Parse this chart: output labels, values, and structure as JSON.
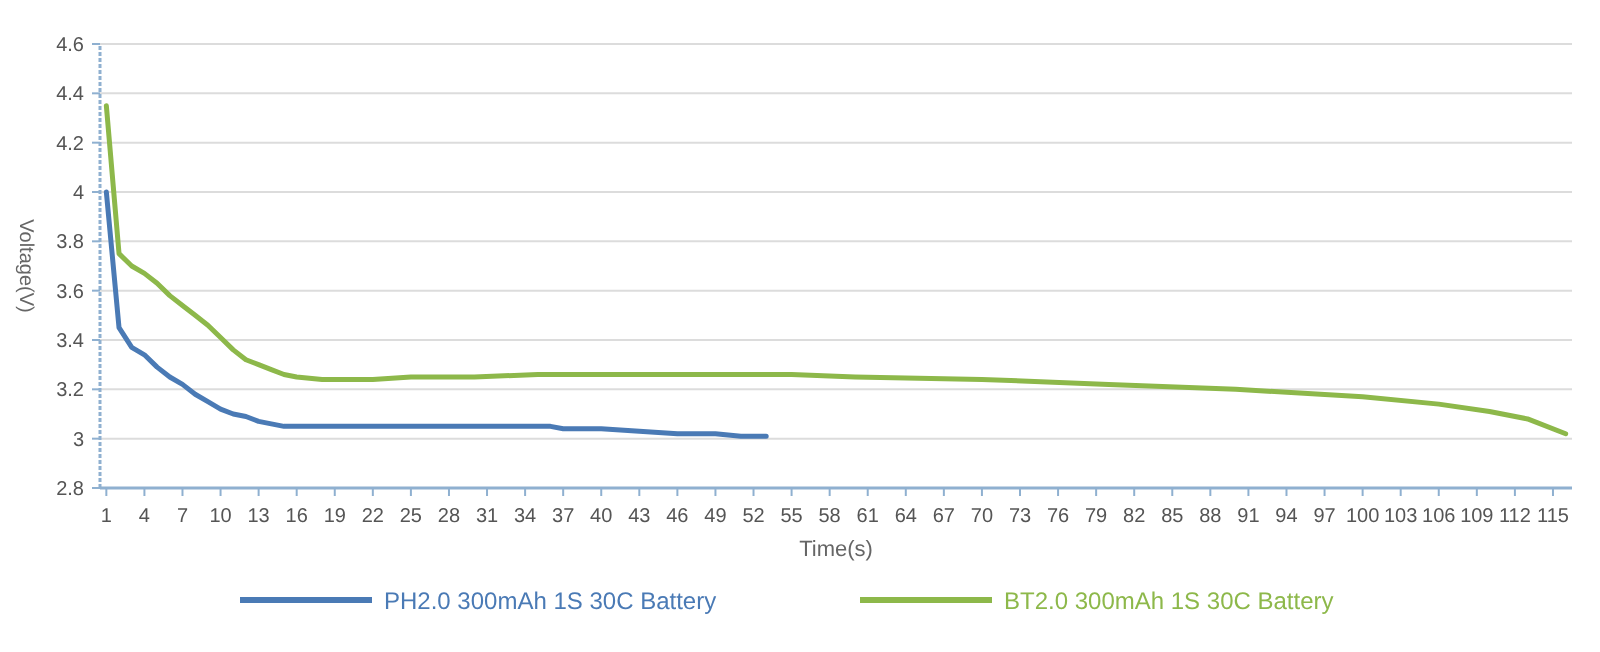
{
  "chart_data": {
    "type": "line",
    "xlabel": "Time(s)",
    "ylabel": "Voltage(V)",
    "xlim": [
      0.5,
      116.5
    ],
    "xticks": [
      1,
      4,
      7,
      10,
      13,
      16,
      19,
      22,
      25,
      28,
      31,
      34,
      37,
      40,
      43,
      46,
      49,
      52,
      55,
      58,
      61,
      64,
      67,
      70,
      73,
      76,
      79,
      82,
      85,
      88,
      91,
      94,
      97,
      100,
      103,
      106,
      109,
      112,
      115
    ],
    "ylim": [
      2.8,
      4.6
    ],
    "yticks": [
      2.8,
      3,
      3.2,
      3.4,
      3.6,
      3.8,
      4,
      4.2,
      4.4,
      4.6
    ],
    "grid": "y",
    "legend": "bottom",
    "marker": "none",
    "line_style": "solid",
    "series": [
      {
        "name": "PH2.0 300mAh 1S 30C Battery",
        "color": "#4a7ab5",
        "x": [
          1,
          2,
          3,
          4,
          5,
          6,
          7,
          8,
          9,
          10,
          11,
          12,
          13,
          14,
          15,
          16,
          25,
          36,
          37,
          40,
          43,
          46,
          49,
          51,
          53
        ],
        "values": [
          4.0,
          3.45,
          3.37,
          3.34,
          3.29,
          3.25,
          3.22,
          3.18,
          3.15,
          3.12,
          3.1,
          3.09,
          3.07,
          3.06,
          3.05,
          3.05,
          3.05,
          3.05,
          3.04,
          3.04,
          3.03,
          3.02,
          3.02,
          3.01,
          3.01
        ]
      },
      {
        "name": "BT2.0 300mAh 1S 30C Battery",
        "color": "#8db84a",
        "x": [
          1,
          2,
          3,
          4,
          5,
          6,
          7,
          8,
          9,
          10,
          11,
          12,
          13,
          14,
          15,
          16,
          18,
          22,
          25,
          30,
          35,
          50,
          55,
          60,
          70,
          80,
          90,
          100,
          106,
          110,
          113,
          116
        ],
        "values": [
          4.35,
          3.75,
          3.7,
          3.67,
          3.63,
          3.58,
          3.54,
          3.5,
          3.46,
          3.41,
          3.36,
          3.32,
          3.3,
          3.28,
          3.26,
          3.25,
          3.24,
          3.24,
          3.25,
          3.25,
          3.26,
          3.26,
          3.26,
          3.25,
          3.24,
          3.22,
          3.2,
          3.17,
          3.14,
          3.11,
          3.08,
          3.02
        ]
      }
    ]
  }
}
